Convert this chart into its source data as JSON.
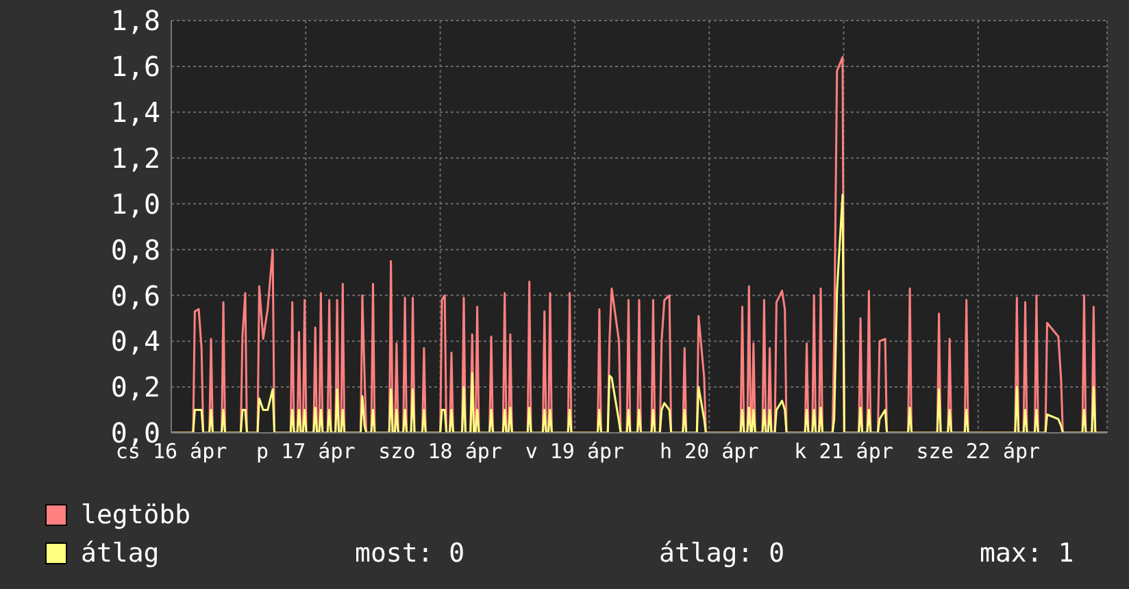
{
  "chart_data": {
    "type": "line",
    "x": [
      "--04-16T00:00",
      "--04-16T03:54",
      "--04-16T04:12",
      "--04-16T04:54",
      "--04-16T05:24",
      "--04-16T05:42",
      "--04-16T06:48",
      "--04-16T07:06",
      "--04-16T07:24",
      "--04-16T09:00",
      "--04-16T09:18",
      "--04-16T09:36",
      "--04-16T12:24",
      "--04-16T12:42",
      "--04-16T13:12",
      "--04-16T13:30",
      "--04-16T15:24",
      "--04-16T15:42",
      "--04-16T16:24",
      "--04-16T17:12",
      "--04-16T18:06",
      "--04-16T18:24",
      "--04-16T21:18",
      "--04-16T21:36",
      "--04-16T21:54",
      "--04-16T22:30",
      "--04-16T22:48",
      "--04-16T23:06",
      "--04-16T23:30",
      "--04-16T23:48",
      "--04-17T00:06",
      "--04-17T01:24",
      "--04-17T01:42",
      "--04-17T02:00",
      "--04-17T02:24",
      "--04-17T02:42",
      "--04-17T03:00",
      "--04-17T03:54",
      "--04-17T04:12",
      "--04-17T04:30",
      "--04-17T05:18",
      "--04-17T05:36",
      "--04-17T05:54",
      "--04-17T06:18",
      "--04-17T06:36",
      "--04-17T06:54",
      "--04-17T09:48",
      "--04-17T10:06",
      "--04-17T10:30",
      "--04-17T10:48",
      "--04-17T11:42",
      "--04-17T12:00",
      "--04-17T12:18",
      "--04-17T14:54",
      "--04-17T15:12",
      "--04-17T15:30",
      "--04-17T15:54",
      "--04-17T16:12",
      "--04-17T16:30",
      "--04-17T17:24",
      "--04-17T17:42",
      "--04-17T18:00",
      "--04-17T18:48",
      "--04-17T19:06",
      "--04-17T19:24",
      "--04-17T20:48",
      "--04-17T21:06",
      "--04-17T21:24",
      "--04-18T00:00",
      "--04-18T00:18",
      "--04-18T00:48",
      "--04-18T01:06",
      "--04-18T01:42",
      "--04-18T02:00",
      "--04-18T02:18",
      "--04-18T03:54",
      "--04-18T04:12",
      "--04-18T04:30",
      "--04-18T05:24",
      "--04-18T05:42",
      "--04-18T06:00",
      "--04-18T06:18",
      "--04-18T06:36",
      "--04-18T06:54",
      "--04-18T08:48",
      "--04-18T09:06",
      "--04-18T09:24",
      "--04-18T11:12",
      "--04-18T11:30",
      "--04-18T11:48",
      "--04-18T12:12",
      "--04-18T12:30",
      "--04-18T12:48",
      "--04-18T15:36",
      "--04-18T15:54",
      "--04-18T16:12",
      "--04-18T18:18",
      "--04-18T18:36",
      "--04-18T18:54",
      "--04-18T19:18",
      "--04-18T19:36",
      "--04-18T19:54",
      "--04-18T22:48",
      "--04-18T23:06",
      "--04-18T23:24",
      "--04-19T04:06",
      "--04-19T04:24",
      "--04-19T04:42",
      "--04-19T05:54",
      "--04-19T06:12",
      "--04-19T06:36",
      "--04-19T07:54",
      "--04-19T08:12",
      "--04-19T09:18",
      "--04-19T09:36",
      "--04-19T09:54",
      "--04-19T11:12",
      "--04-19T11:30",
      "--04-19T11:48",
      "--04-19T13:42",
      "--04-19T14:00",
      "--04-19T14:18",
      "--04-19T15:12",
      "--04-19T15:30",
      "--04-19T16:00",
      "--04-19T16:54",
      "--04-19T17:12",
      "--04-19T19:18",
      "--04-19T19:36",
      "--04-19T19:54",
      "--04-19T21:48",
      "--04-19T22:06",
      "--04-19T23:06",
      "--04-19T23:24",
      "--04-20T05:36",
      "--04-20T05:54",
      "--04-20T06:12",
      "--04-20T06:48",
      "--04-20T07:06",
      "--04-20T07:24",
      "--04-20T07:36",
      "--04-20T07:54",
      "--04-20T08:12",
      "--04-20T09:30",
      "--04-20T09:48",
      "--04-20T10:06",
      "--04-20T10:30",
      "--04-20T10:48",
      "--04-20T11:06",
      "--04-20T11:42",
      "--04-20T12:00",
      "--04-20T13:00",
      "--04-20T13:30",
      "--04-20T13:48",
      "--04-20T17:06",
      "--04-20T17:24",
      "--04-20T17:42",
      "--04-20T18:24",
      "--04-20T18:42",
      "--04-20T19:00",
      "--04-20T19:36",
      "--04-20T19:54",
      "--04-20T20:12",
      "--04-20T22:00",
      "--04-20T22:18",
      "--04-20T22:48",
      "--04-20T23:48",
      "--04-21T00:06",
      "--04-21T02:42",
      "--04-21T03:00",
      "--04-21T03:18",
      "--04-21T04:12",
      "--04-21T04:30",
      "--04-21T04:48",
      "--04-21T06:06",
      "--04-21T06:24",
      "--04-21T07:24",
      "--04-21T07:42",
      "--04-21T11:30",
      "--04-21T11:48",
      "--04-21T12:06",
      "--04-21T16:42",
      "--04-21T17:00",
      "--04-21T17:18",
      "--04-21T18:36",
      "--04-21T18:54",
      "--04-21T19:12",
      "--04-21T21:36",
      "--04-21T21:54",
      "--04-21T22:12",
      "--04-22T06:36",
      "--04-22T06:54",
      "--04-22T07:12",
      "--04-22T08:06",
      "--04-22T08:24",
      "--04-22T08:42",
      "--04-22T10:06",
      "--04-22T10:24",
      "--04-22T10:42",
      "--04-22T12:00",
      "--04-22T12:18",
      "--04-22T14:18",
      "--04-22T14:48",
      "--04-22T15:06",
      "--04-22T18:36",
      "--04-22T18:54",
      "--04-22T19:12",
      "--04-22T20:18",
      "--04-22T20:36",
      "--04-22T20:54",
      "--04-22T23:00"
    ],
    "series": [
      {
        "name": "legtöbb",
        "color": "#ff8080",
        "values": [
          0,
          0,
          0.53,
          0.54,
          0.37,
          0,
          0,
          0.41,
          0,
          0,
          0.57,
          0,
          0,
          0.42,
          0.61,
          0,
          0,
          0.64,
          0.41,
          0.54,
          0.8,
          0,
          0,
          0.57,
          0,
          0,
          0.44,
          0,
          0,
          0.58,
          0,
          0,
          0.46,
          0,
          0,
          0.61,
          0,
          0,
          0.58,
          0,
          0,
          0.58,
          0,
          0,
          0.65,
          0,
          0,
          0.6,
          0.24,
          0,
          0,
          0.65,
          0,
          0,
          0.75,
          0,
          0,
          0.39,
          0,
          0,
          0.59,
          0,
          0,
          0.59,
          0,
          0,
          0.37,
          0,
          0,
          0.58,
          0.6,
          0,
          0,
          0.35,
          0,
          0,
          0.59,
          0,
          0,
          0.43,
          0,
          0,
          0.55,
          0,
          0,
          0.42,
          0,
          0,
          0.61,
          0,
          0,
          0.43,
          0,
          0,
          0.66,
          0,
          0,
          0.53,
          0,
          0,
          0.61,
          0,
          0,
          0.61,
          0,
          0,
          0.54,
          0,
          0,
          0.4,
          0.63,
          0.4,
          0,
          0,
          0.58,
          0,
          0,
          0.58,
          0,
          0,
          0.58,
          0,
          0,
          0.4,
          0.58,
          0.6,
          0,
          0,
          0.37,
          0,
          0,
          0.51,
          0.24,
          0,
          0,
          0.55,
          0,
          0,
          0.64,
          0,
          0,
          0.39,
          0,
          0,
          0.58,
          0,
          0,
          0.37,
          0,
          0,
          0.57,
          0.62,
          0.54,
          0,
          0,
          0.39,
          0,
          0,
          0.6,
          0,
          0,
          0.63,
          0,
          0,
          0.4,
          1.58,
          1.64,
          0,
          0,
          0.5,
          0,
          0,
          0.62,
          0,
          0,
          0.4,
          0.41,
          0,
          0,
          0.63,
          0,
          0,
          0.52,
          0,
          0,
          0.41,
          0,
          0,
          0.58,
          0,
          0,
          0.59,
          0,
          0,
          0.57,
          0,
          0,
          0.6,
          0,
          0,
          0.48,
          0.42,
          0.23,
          0,
          0,
          0.6,
          0,
          0,
          0.55,
          0,
          0
        ]
      },
      {
        "name": "átlag",
        "color": "#ffff80",
        "values": [
          0,
          0,
          0.1,
          0.1,
          0.1,
          0,
          0,
          0.1,
          0,
          0,
          0.1,
          0,
          0,
          0.1,
          0.1,
          0,
          0,
          0.15,
          0.1,
          0.1,
          0.19,
          0,
          0,
          0.1,
          0,
          0,
          0.1,
          0,
          0,
          0.1,
          0,
          0,
          0.11,
          0,
          0,
          0.1,
          0,
          0,
          0.1,
          0,
          0,
          0.19,
          0,
          0,
          0.1,
          0,
          0,
          0.16,
          0.03,
          0,
          0,
          0.1,
          0,
          0,
          0.19,
          0,
          0,
          0.1,
          0,
          0,
          0.1,
          0,
          0,
          0.19,
          0,
          0,
          0.1,
          0,
          0,
          0.1,
          0.1,
          0,
          0,
          0.1,
          0,
          0,
          0.2,
          0,
          0,
          0.26,
          0,
          0,
          0.1,
          0,
          0,
          0.1,
          0,
          0,
          0.1,
          0,
          0,
          0.11,
          0,
          0,
          0.11,
          0,
          0,
          0.1,
          0,
          0,
          0.1,
          0,
          0,
          0.1,
          0,
          0,
          0.1,
          0,
          0,
          0.25,
          0.24,
          0.05,
          0,
          0,
          0.1,
          0,
          0,
          0.1,
          0,
          0,
          0.1,
          0,
          0,
          0.1,
          0.13,
          0.1,
          0,
          0,
          0.1,
          0,
          0,
          0.2,
          0.06,
          0,
          0,
          0.1,
          0,
          0,
          0.11,
          0,
          0,
          0.1,
          0,
          0,
          0.1,
          0,
          0,
          0.1,
          0,
          0,
          0.1,
          0.14,
          0.1,
          0,
          0,
          0.1,
          0,
          0,
          0.1,
          0,
          0,
          0.11,
          0,
          0,
          0.06,
          0.62,
          1.04,
          0,
          0,
          0.11,
          0,
          0,
          0.1,
          0,
          0,
          0.06,
          0.1,
          0,
          0,
          0.11,
          0,
          0,
          0.19,
          0,
          0,
          0.1,
          0,
          0,
          0.1,
          0,
          0,
          0.2,
          0,
          0,
          0.1,
          0,
          0,
          0.1,
          0,
          0,
          0.08,
          0.06,
          0.03,
          0,
          0,
          0.1,
          0,
          0,
          0.2,
          0,
          0
        ]
      }
    ],
    "xlim": [
      "--04-16T00:00",
      "--04-22T23:00"
    ],
    "xticks": [
      {
        "value": "--04-16T00:00",
        "label": "cs 16 ápr"
      },
      {
        "value": "--04-17T00:00",
        "label": "p 17 ápr"
      },
      {
        "value": "--04-18T00:00",
        "label": "szo 18 ápr"
      },
      {
        "value": "--04-19T00:00",
        "label": "v 19 ápr"
      },
      {
        "value": "--04-20T00:00",
        "label": "h 20 ápr"
      },
      {
        "value": "--04-21T00:00",
        "label": "k 21 ápr"
      },
      {
        "value": "--04-22T00:00",
        "label": "sze 22 ápr"
      }
    ],
    "ylim": [
      0,
      1.8
    ],
    "yticks": [
      {
        "value": 0,
        "label": "0,0"
      },
      {
        "value": 0.2,
        "label": "0,2"
      },
      {
        "value": 0.4,
        "label": "0,4"
      },
      {
        "value": 0.6,
        "label": "0,6"
      },
      {
        "value": 0.8,
        "label": "0,8"
      },
      {
        "value": 1.0,
        "label": "1,0"
      },
      {
        "value": 1.2,
        "label": "1,2"
      },
      {
        "value": 1.4,
        "label": "1,4"
      },
      {
        "value": 1.6,
        "label": "1,6"
      },
      {
        "value": 1.8,
        "label": "1,8"
      }
    ],
    "grid": true,
    "legend": "bottom left",
    "marker": "none",
    "line_style": "solid",
    "annotations": [
      "most: 0",
      "átlag: 0",
      "max: 1"
    ]
  }
}
